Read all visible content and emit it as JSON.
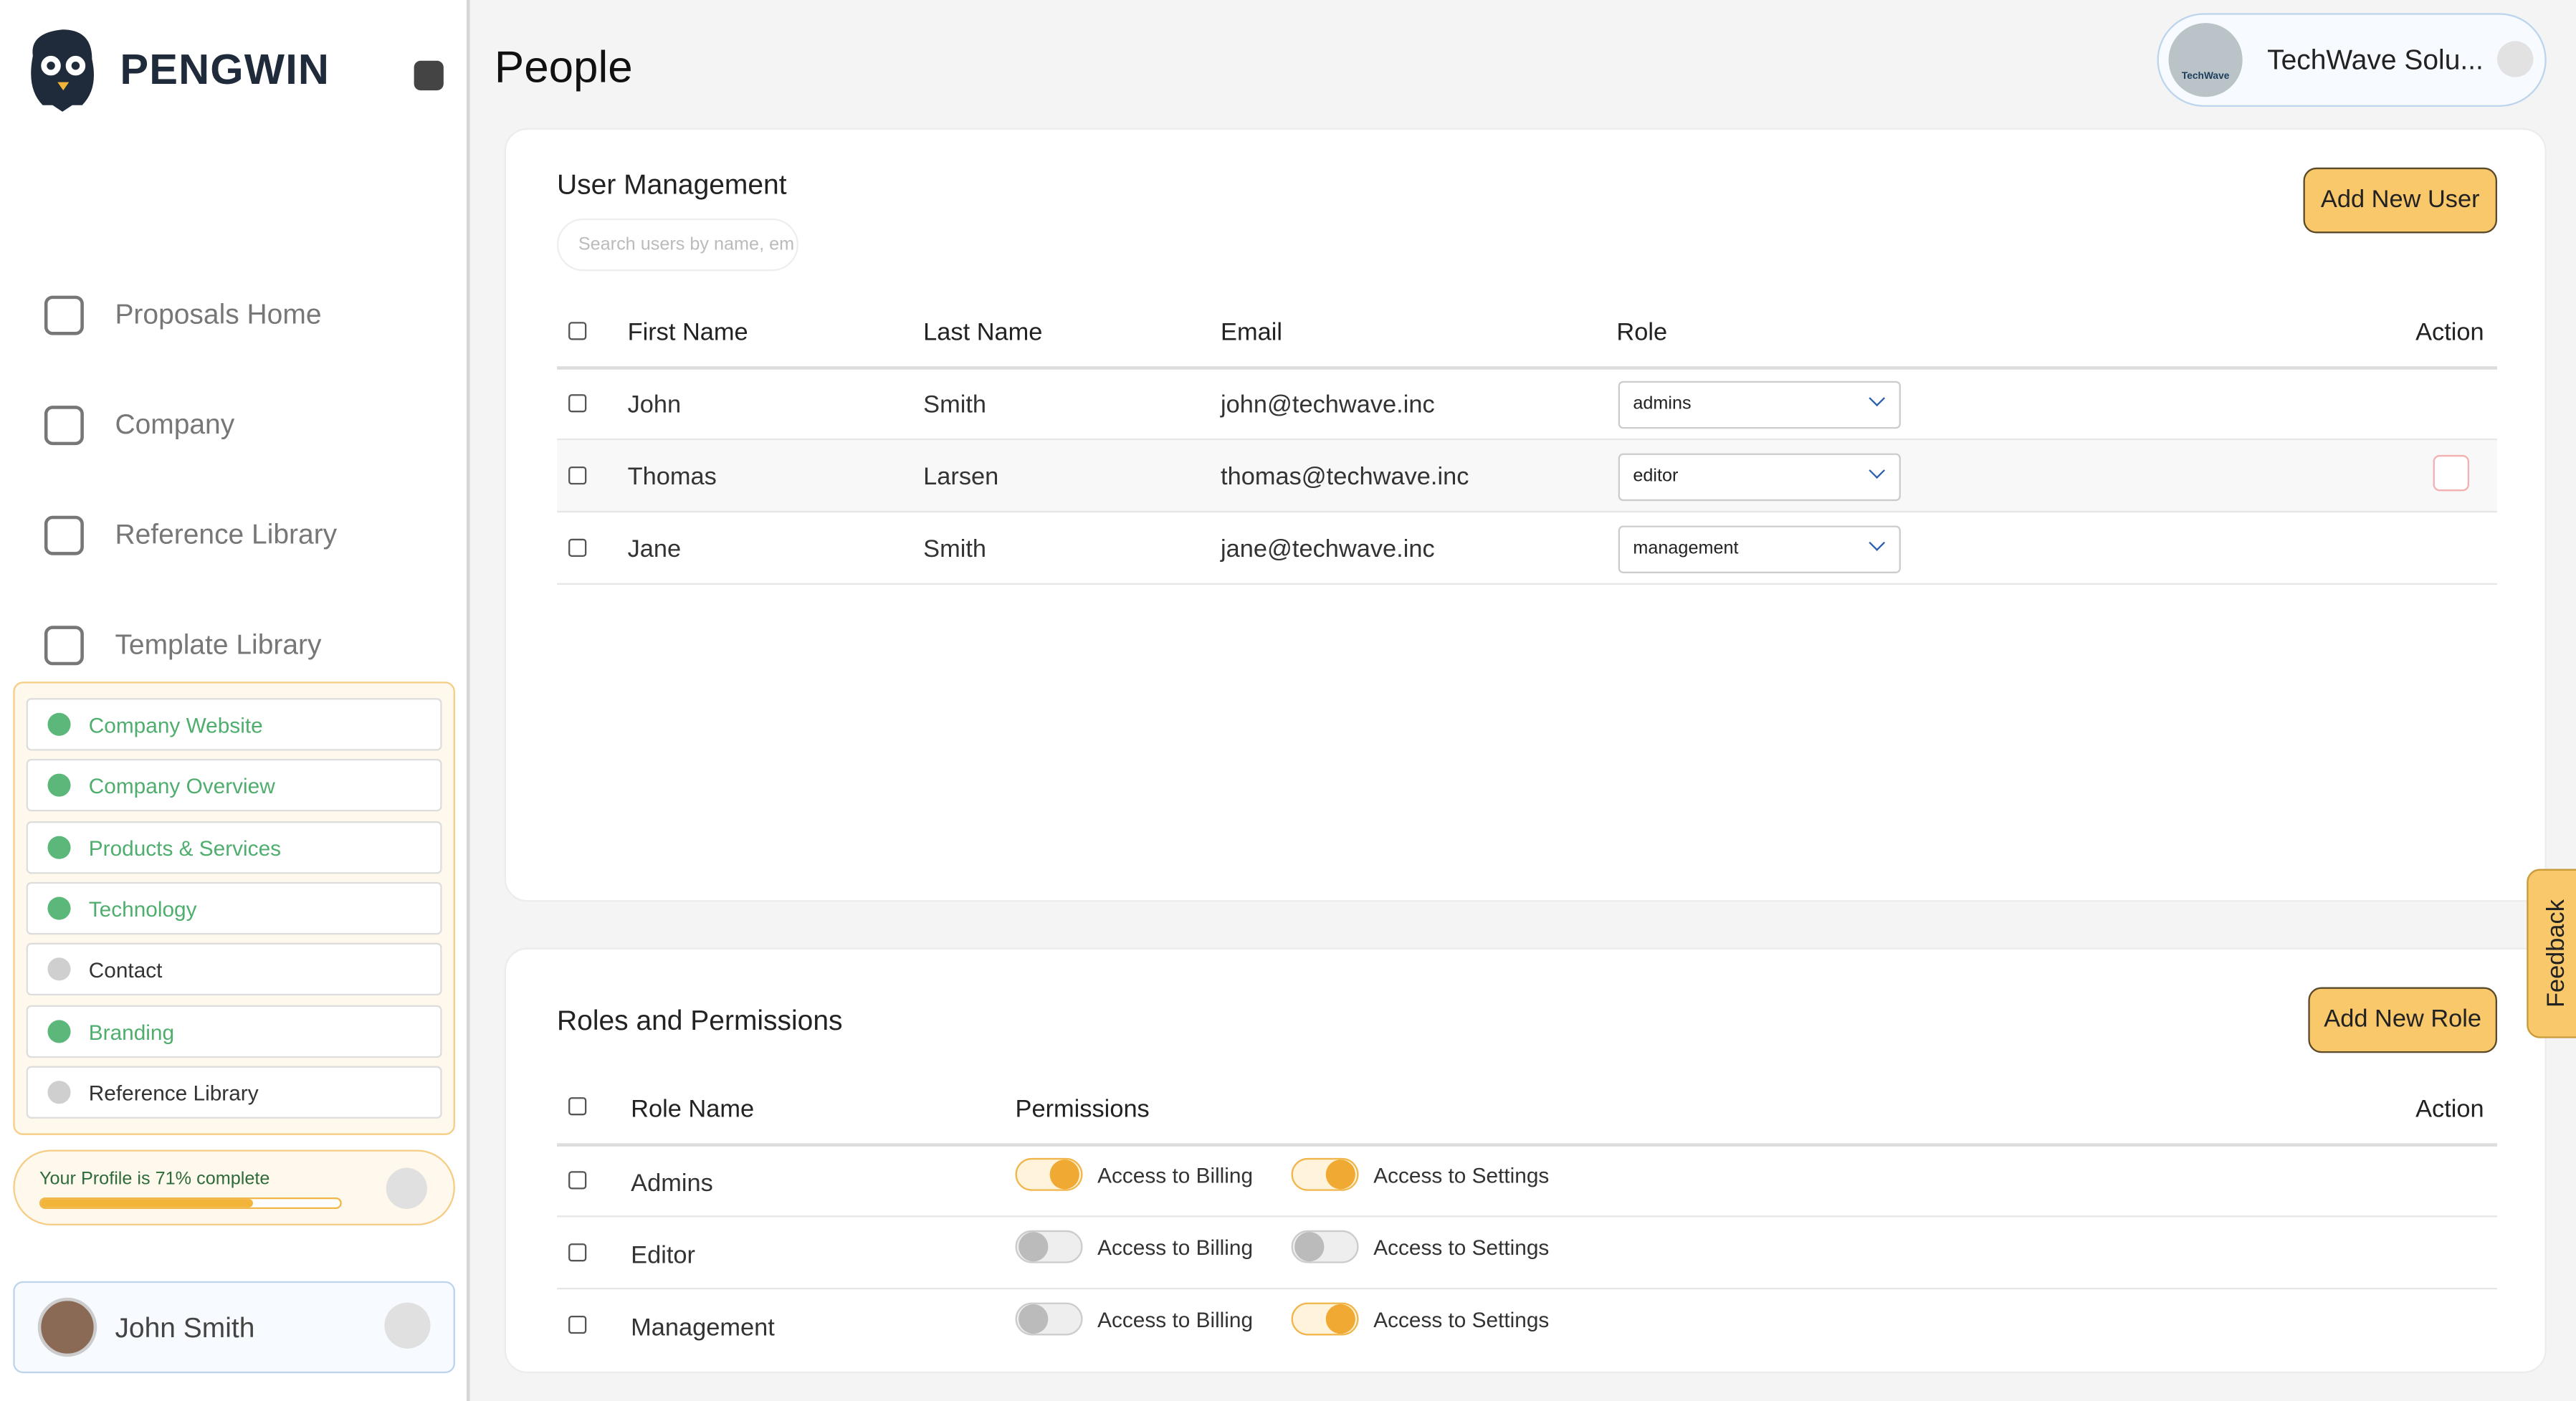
{
  "sidebar": {
    "brand": "PENGWIN",
    "nav": [
      "Proposals Home",
      "Company",
      "Reference Library",
      "Template Library"
    ],
    "checklist": [
      {
        "label": "Company Website",
        "completed": true
      },
      {
        "label": "Company Overview",
        "completed": true
      },
      {
        "label": "Products & Services",
        "completed": true
      },
      {
        "label": "Technology",
        "completed": true
      },
      {
        "label": "Contact",
        "completed": false
      },
      {
        "label": "Branding",
        "completed": true
      },
      {
        "label": "Reference Library",
        "completed": false
      }
    ],
    "progress": {
      "label": "Your Profile is 71% complete",
      "value": 71
    },
    "user": "John Smith"
  },
  "header": {
    "title": "People",
    "org_logo": "TechWave",
    "org": "TechWave Solu..."
  },
  "user_management": {
    "title": "User Management",
    "search_placeholder": "Search users by name, em",
    "button": "Add New User",
    "columns": [
      "First Name",
      "Last Name",
      "Email",
      "Role",
      "Action"
    ],
    "rows": [
      [
        "John",
        "Smith",
        "john@techwave.inc",
        "admins"
      ],
      [
        "Thomas",
        "Larsen",
        "thomas@techwave.inc",
        "editor"
      ],
      [
        "Jane",
        "Smith",
        "jane@techwave.inc",
        "management"
      ]
    ]
  },
  "roles_permissions": {
    "title": "Roles and Permissions",
    "button": "Add New Role",
    "columns": [
      "Role Name",
      "Permissions",
      "Action"
    ],
    "rows": [
      {
        "name": "Admins",
        "permissions": [
          {
            "label": "Access to Billing",
            "enabled": true
          },
          {
            "label": "Access to Settings",
            "enabled": true
          }
        ]
      },
      {
        "name": "Editor",
        "permissions": [
          {
            "label": "Access to Billing",
            "enabled": false
          },
          {
            "label": "Access to Settings",
            "enabled": false
          }
        ]
      },
      {
        "name": "Management",
        "permissions": [
          {
            "label": "Access to Billing",
            "enabled": false
          },
          {
            "label": "Access to Settings",
            "enabled": true
          }
        ]
      }
    ]
  },
  "feedback": "Feedback"
}
